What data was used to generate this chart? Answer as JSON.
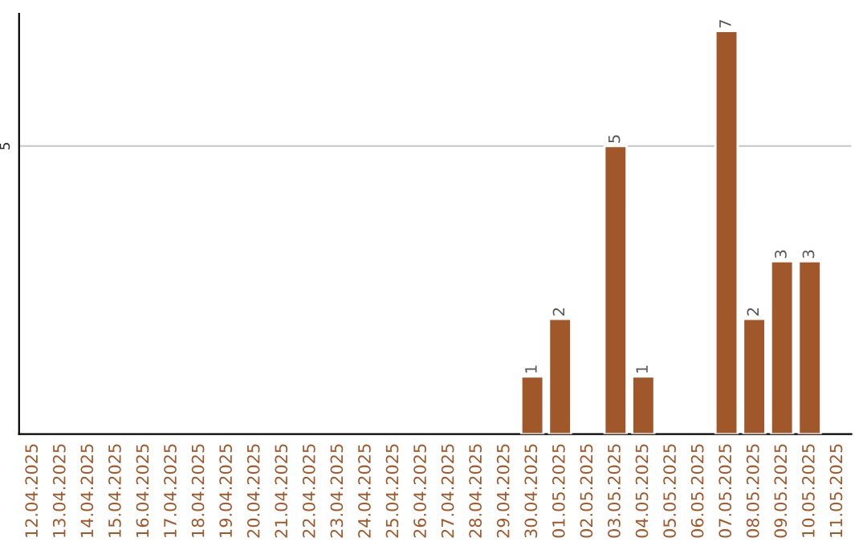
{
  "chart_data": {
    "type": "bar",
    "categories": [
      "12.04.2025",
      "13.04.2025",
      "14.04.2025",
      "15.04.2025",
      "16.04.2025",
      "17.04.2025",
      "18.04.2025",
      "19.04.2025",
      "20.04.2025",
      "21.04.2025",
      "22.04.2025",
      "23.04.2025",
      "24.04.2025",
      "25.04.2025",
      "26.04.2025",
      "27.04.2025",
      "28.04.2025",
      "29.04.2025",
      "30.04.2025",
      "01.05.2025",
      "02.05.2025",
      "03.05.2025",
      "04.05.2025",
      "05.05.2025",
      "06.05.2025",
      "07.05.2025",
      "08.05.2025",
      "09.05.2025",
      "10.05.2025",
      "11.05.2025"
    ],
    "values": [
      null,
      null,
      null,
      null,
      null,
      null,
      null,
      null,
      null,
      null,
      null,
      null,
      null,
      null,
      null,
      null,
      null,
      null,
      1,
      2,
      null,
      5,
      1,
      null,
      null,
      7,
      2,
      3,
      3,
      null
    ],
    "color": "#a0572a",
    "ylim": [
      0,
      7.3
    ],
    "yticks": [
      5
    ],
    "grid": "y",
    "data_labels": true
  }
}
